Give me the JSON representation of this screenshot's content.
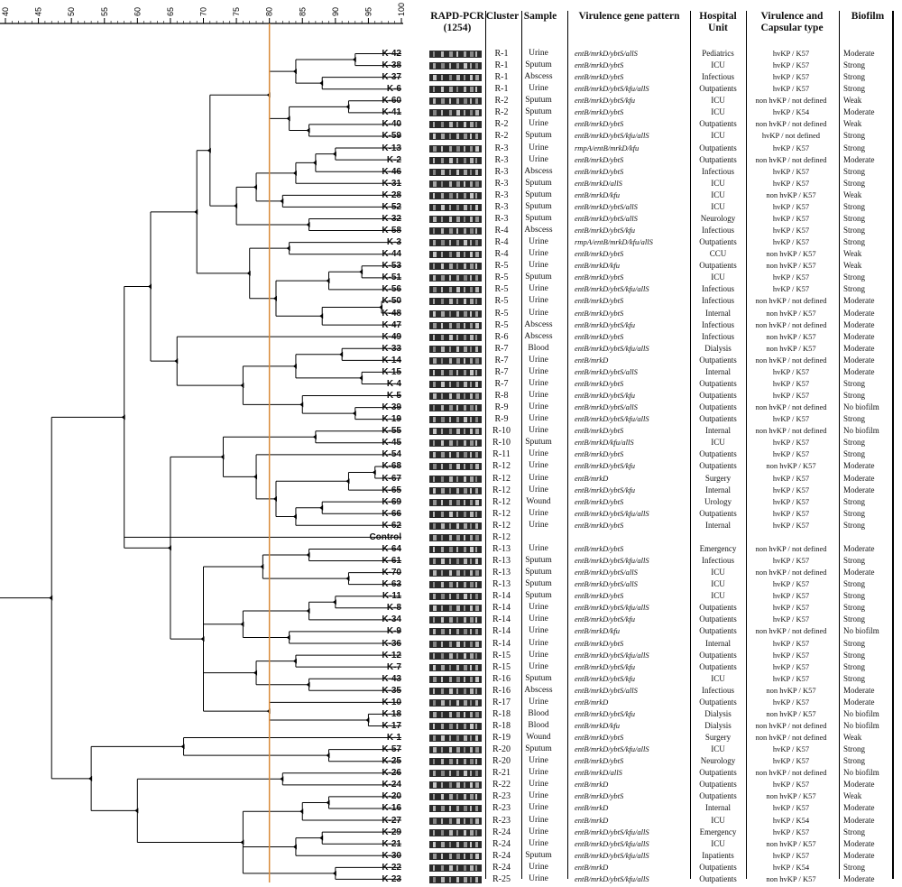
{
  "scale": {
    "ticks": [
      40,
      45,
      50,
      55,
      60,
      65,
      70,
      75,
      80,
      85,
      90,
      95,
      100
    ],
    "min": 40,
    "max": 100,
    "cutoff": 80,
    "cutoff_color": "#d98b3a"
  },
  "headers": {
    "gel": "RAPD-PCR\n(1254)",
    "cluster": "Cluster",
    "sample": "Sample",
    "gene": "Virulence gene pattern",
    "unit": "Hospital\nUnit",
    "virulence": "Virulence and\nCapsular type",
    "biofilm": "Biofilm"
  },
  "isolates": [
    [
      "K-42",
      "R-1",
      "Urine",
      "entB/mrkD/ybtS/allS",
      "Pediatrics",
      "hvKP / K57",
      "Moderate"
    ],
    [
      "K-38",
      "R-1",
      "Sputum",
      "entB/mrkD/ybtS",
      "ICU",
      "hvKP / K57",
      "Strong"
    ],
    [
      "K-37",
      "R-1",
      "Abscess",
      "entB/mrkD/ybtS",
      "Infectious",
      "hvKP / K57",
      "Strong"
    ],
    [
      "K-6",
      "R-1",
      "Urine",
      "entB/mrkD/ybtS/kfu/allS",
      "Outpatients",
      "hvKP / K57",
      "Strong"
    ],
    [
      "K-60",
      "R-2",
      "Sputum",
      "entB/mrkD/ybtS/kfu",
      "ICU",
      "non hvKP / not defined",
      "Weak"
    ],
    [
      "K-41",
      "R-2",
      "Sputum",
      "entB/mrkD/ybtS",
      "ICU",
      "hvKP / K54",
      "Moderate"
    ],
    [
      "K-40",
      "R-2",
      "Urine",
      "entB/mrkD/ybtS",
      "Outpatients",
      "non hvKP / not defined",
      "Weak"
    ],
    [
      "K-59",
      "R-2",
      "Sputum",
      "entB/mrkD/ybtS/kfu/allS",
      "ICU",
      "hvKP / not defined",
      "Strong"
    ],
    [
      "K-13",
      "R-3",
      "Urine",
      "rmpA/entB/mrkD/kfu",
      "Outpatients",
      "hvKP / K57",
      "Strong"
    ],
    [
      "K-2",
      "R-3",
      "Urine",
      "entB/mrkD/ybtS",
      "Outpatients",
      "non hvKP / not defined",
      "Moderate"
    ],
    [
      "K-46",
      "R-3",
      "Abscess",
      "entB/mrkD/ybtS",
      "Infectious",
      "hvKP / K57",
      "Strong"
    ],
    [
      "K-31",
      "R-3",
      "Sputum",
      "entB/mrkD/allS",
      "ICU",
      "hvKP / K57",
      "Strong"
    ],
    [
      "K-28",
      "R-3",
      "Sputum",
      "entB/mrkD/kfu",
      "ICU",
      "non hvKP / K57",
      "Weak"
    ],
    [
      "K-52",
      "R-3",
      "Sputum",
      "entB/mrkD/ybtS/allS",
      "ICU",
      "hvKP / K57",
      "Strong"
    ],
    [
      "K-32",
      "R-3",
      "Sputum",
      "entB/mrkD/ybtS/allS",
      "Neurology",
      "hvKP / K57",
      "Strong"
    ],
    [
      "K-58",
      "R-4",
      "Abscess",
      "entB/mrkD/ybtS/kfu",
      "Infectious",
      "hvKP / K57",
      "Strong"
    ],
    [
      "K-3",
      "R-4",
      "Urine",
      "rmpA/entB/mrkD/kfu/allS",
      "Outpatients",
      "hvKP / K57",
      "Strong"
    ],
    [
      "K-44",
      "R-4",
      "Urine",
      "entB/mrkD/ybtS",
      "CCU",
      "non hvKP / K57",
      "Weak"
    ],
    [
      "K-53",
      "R-5",
      "Urine",
      "entB/mrkD/kfu",
      "Outpatients",
      "non hvKP / K57",
      "Weak"
    ],
    [
      "K-51",
      "R-5",
      "Sputum",
      "entB/mrkD/ybtS",
      "ICU",
      "hvKP / K57",
      "Strong"
    ],
    [
      "K-56",
      "R-5",
      "Urine",
      "entB/mrkD/ybtS/kfu/allS",
      "Infectious",
      "hvKP / K57",
      "Strong"
    ],
    [
      "K-50",
      "R-5",
      "Urine",
      "entB/mrkD/ybtS",
      "Infectious",
      "non hvKP / not defined",
      "Moderate"
    ],
    [
      "K-48",
      "R-5",
      "Urine",
      "entB/mrkD/ybtS",
      "Internal",
      "non hvKP / K57",
      "Moderate"
    ],
    [
      "K-47",
      "R-5",
      "Abscess",
      "entB/mrkD/ybtS/kfu",
      "Infectious",
      "non hvKP / not defined",
      "Moderate"
    ],
    [
      "K-49",
      "R-6",
      "Abscess",
      "entB/mrkD/ybtS",
      "Infectious",
      "non hvKP / K57",
      "Moderate"
    ],
    [
      "K-33",
      "R-7",
      "Blood",
      "entB/mrkD/ybtS/kfu/allS",
      "Dialysis",
      "non hvKP / K57",
      "Moderate"
    ],
    [
      "K-14",
      "R-7",
      "Urine",
      "entB/mrkD",
      "Outpatients",
      "non hvKP / not defined",
      "Moderate"
    ],
    [
      "K-15",
      "R-7",
      "Urine",
      "entB/mrkD/ybtS/allS",
      "Internal",
      "hvKP / K57",
      "Moderate"
    ],
    [
      "K-4",
      "R-7",
      "Urine",
      "entB/mrkD/ybtS",
      "Outpatients",
      "hvKP / K57",
      "Strong"
    ],
    [
      "K-5",
      "R-8",
      "Urine",
      "entB/mrkD/ybtS/kfu",
      "Outpatients",
      "hvKP / K57",
      "Strong"
    ],
    [
      "K-39",
      "R-9",
      "Urine",
      "entB/mrkD/ybtS/allS",
      "Outpatients",
      "non hvKP / not defined",
      "No biofilm"
    ],
    [
      "K-19",
      "R-9",
      "Urine",
      "entB/mrkD/ybtS/kfu/allS",
      "Outpatients",
      "hvKP / K57",
      "Strong"
    ],
    [
      "K-55",
      "R-10",
      "Urine",
      "entB/mrkD/ybtS",
      "Internal",
      "non hvKP / not defined",
      "No biofilm"
    ],
    [
      "K-45",
      "R-10",
      "Sputum",
      "entB/mrkD/kfu/allS",
      "ICU",
      "hvKP / K57",
      "Strong"
    ],
    [
      "K-54",
      "R-11",
      "Urine",
      "entB/mrkD/ybtS",
      "Outpatients",
      "hvKP / K57",
      "Strong"
    ],
    [
      "K-68",
      "R-12",
      "Urine",
      "entB/mrkD/ybtS/kfu",
      "Outpatients",
      "non hvKP / K57",
      "Moderate"
    ],
    [
      "K-67",
      "R-12",
      "Urine",
      "entB/mrkD",
      "Surgery",
      "hvKP / K57",
      "Moderate"
    ],
    [
      "K-65",
      "R-12",
      "Urine",
      "entB/mrkD/ybtS/kfu",
      "Internal",
      "hvKP / K57",
      "Moderate"
    ],
    [
      "K-69",
      "R-12",
      "Wound",
      "entB/mrkD/ybtS",
      "Urology",
      "hvKP / K57",
      "Strong"
    ],
    [
      "K-66",
      "R-12",
      "Urine",
      "entB/mrkD/ybtS/kfu/allS",
      "Outpatients",
      "hvKP / K57",
      "Strong"
    ],
    [
      "K-62",
      "R-12",
      "Urine",
      "entB/mrkD/ybtS",
      "Internal",
      "hvKP / K57",
      "Strong"
    ],
    [
      "Control",
      "R-12",
      "",
      "",
      "",
      "",
      ""
    ],
    [
      "K-64",
      "R-13",
      "Urine",
      "entB/mrkD/ybtS",
      "Emergency",
      "non hvKP / not defined",
      "Moderate"
    ],
    [
      "K-61",
      "R-13",
      "Sputum",
      "entB/mrkD/ybtS/kfu/allS",
      "Infectious",
      "hvKP / K57",
      "Strong"
    ],
    [
      "K-70",
      "R-13",
      "Sputum",
      "entB/mrkD/ybtS/allS",
      "ICU",
      "non hvKP / not defined",
      "Moderate"
    ],
    [
      "K-63",
      "R-13",
      "Sputum",
      "entB/mrkD/ybtS/allS",
      "ICU",
      "hvKP / K57",
      "Strong"
    ],
    [
      "K-11",
      "R-14",
      "Sputum",
      "entB/mrkD/ybtS",
      "ICU",
      "hvKP / K57",
      "Strong"
    ],
    [
      "K-8",
      "R-14",
      "Urine",
      "entB/mrkD/ybtS/kfu/allS",
      "Outpatients",
      "hvKP / K57",
      "Strong"
    ],
    [
      "K-34",
      "R-14",
      "Urine",
      "entB/mrkD/ybtS/kfu",
      "Outpatients",
      "hvKP / K57",
      "Strong"
    ],
    [
      "K-9",
      "R-14",
      "Urine",
      "entB/mrkD/kfu",
      "Outpatients",
      "non hvKP / not defined",
      "No biofilm"
    ],
    [
      "K-36",
      "R-14",
      "Urine",
      "entB/mrkD/ybtS",
      "Internal",
      "hvKP / K57",
      "Strong"
    ],
    [
      "K-12",
      "R-15",
      "Urine",
      "entB/mrkD/ybtS/kfu/allS",
      "Outpatients",
      "hvKP / K57",
      "Strong"
    ],
    [
      "K-7",
      "R-15",
      "Urine",
      "entB/mrkD/ybtS/kfu",
      "Outpatients",
      "hvKP / K57",
      "Strong"
    ],
    [
      "K-43",
      "R-16",
      "Sputum",
      "entB/mrkD/ybtS/kfu",
      "ICU",
      "hvKP / K57",
      "Strong"
    ],
    [
      "K-35",
      "R-16",
      "Abscess",
      "entB/mrkD/ybtS/allS",
      "Infectious",
      "non hvKP / K57",
      "Moderate"
    ],
    [
      "K-10",
      "R-17",
      "Urine",
      "entB/mrkD",
      "Outpatients",
      "hvKP / K57",
      "Moderate"
    ],
    [
      "K-18",
      "R-18",
      "Blood",
      "entB/mrkD/ybtS/kfu",
      "Dialysis",
      "non hvKP / K57",
      "No biofilm"
    ],
    [
      "K-17",
      "R-18",
      "Blood",
      "entB/mrkD/kfu",
      "Dialysis",
      "non hvKP / not defined",
      "No biofilm"
    ],
    [
      "K-1",
      "R-19",
      "Wound",
      "entB/mrkD/ybtS",
      "Surgery",
      "non hvKP / not defined",
      "Weak"
    ],
    [
      "K-57",
      "R-20",
      "Sputum",
      "entB/mrkD/ybtS/kfu/allS",
      "ICU",
      "hvKP / K57",
      "Strong"
    ],
    [
      "K-25",
      "R-20",
      "Urine",
      "entB/mrkD/ybtS",
      "Neurology",
      "hvKP / K57",
      "Strong"
    ],
    [
      "K-26",
      "R-21",
      "Urine",
      "entB/mrkD/allS",
      "Outpatients",
      "non hvKP / not defined",
      "No biofilm"
    ],
    [
      "K-24",
      "R-22",
      "Urine",
      "entB/mrkD",
      "Outpatients",
      "hvKP / K57",
      "Moderate"
    ],
    [
      "K-20",
      "R-23",
      "Urine",
      "entB/mrkD/ybtS",
      "Outpatients",
      "non hvKP / K57",
      "Weak"
    ],
    [
      "K-16",
      "R-23",
      "Urine",
      "entB/mrkD",
      "Internal",
      "hvKP / K57",
      "Moderate"
    ],
    [
      "K-27",
      "R-23",
      "Urine",
      "entB/mrkD",
      "ICU",
      "hvKP / K54",
      "Moderate"
    ],
    [
      "K-29",
      "R-24",
      "Urine",
      "entB/mrkD/ybtS/kfu/allS",
      "Emergency",
      "hvKP / K57",
      "Strong"
    ],
    [
      "K-21",
      "R-24",
      "Urine",
      "entB/mrkD/ybtS/kfu/allS",
      "ICU",
      "non hvKP / K57",
      "Moderate"
    ],
    [
      "K-30",
      "R-24",
      "Sputum",
      "entB/mrkD/ybtS/kfu/allS",
      "Inpatients",
      "hvKP / K57",
      "Moderate"
    ],
    [
      "K-22",
      "R-24",
      "Urine",
      "entB/mrkD",
      "Outpatients",
      "hvKP / K54",
      "Strong"
    ],
    [
      "K-23",
      "R-25",
      "Urine",
      "entB/mrkD/ybtS/kfu/allS",
      "Outpatients",
      "non hvKP / K57",
      "Moderate"
    ]
  ]
}
